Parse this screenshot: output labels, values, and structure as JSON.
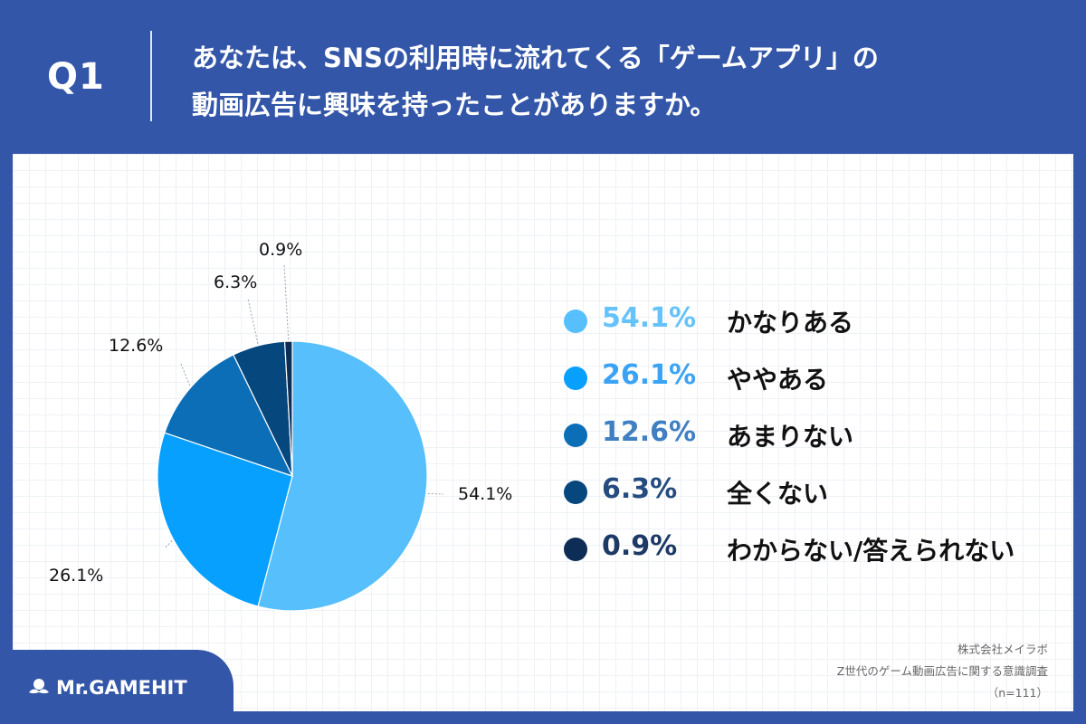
{
  "question": {
    "number": "Q1",
    "lines": [
      "あなたは、SNSの利用時に流れてくる「ゲームアプリ」の",
      "動画広告に興味を持ったことがありますか。"
    ]
  },
  "chart_data": {
    "type": "pie",
    "categories": [
      "かなりある",
      "ややある",
      "あまりない",
      "全くない",
      "わからない/答えられない"
    ],
    "values": [
      54.1,
      26.1,
      12.6,
      6.3,
      0.9
    ],
    "value_labels": [
      "54.1%",
      "26.1%",
      "12.6%",
      "6.3%",
      "0.9%"
    ],
    "colors": [
      "#57bffc",
      "#07a0ff",
      "#0c6eb6",
      "#06477e",
      "#0d2d56"
    ],
    "legend_value_colors": [
      "#66c2fa",
      "#3aa3f5",
      "#3f7fc2",
      "#254c7f",
      "#1d3a66"
    ],
    "start": "12 o'clock, clockwise",
    "legend_position": "right"
  },
  "source": {
    "company": "株式会社メイラボ",
    "survey": "Z世代のゲーム動画広告に関する意識調査",
    "sample": "（n=111）"
  },
  "logo": {
    "text": "Mr.GAMEHIT",
    "icon": "mustache-icon"
  }
}
